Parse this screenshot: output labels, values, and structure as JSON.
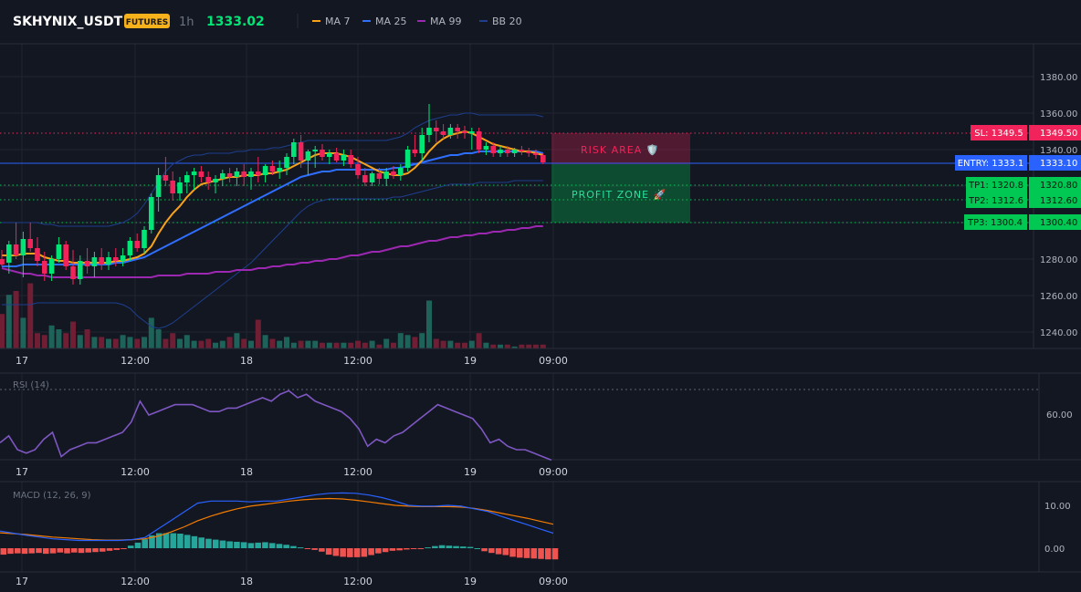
{
  "header": {
    "symbol": "SKHYNIX_USDT",
    "badge": "FUTURES",
    "interval": "1h",
    "price": "1333.02",
    "legend": [
      {
        "label": "MA 7",
        "color": "#f7a21b"
      },
      {
        "label": "MA 25",
        "color": "#2f6fff"
      },
      {
        "label": "MA 99",
        "color": "#9c27b0"
      },
      {
        "label": "BB 20",
        "color": "#1e3f8f"
      }
    ]
  },
  "colors": {
    "background": "#131722",
    "up": "#26a69a",
    "up_bright": "#00e676",
    "down": "#f0245a",
    "grid": "#1f2430",
    "sl": "#f0245a",
    "entry": "#2962ff",
    "tp": "#00c853"
  },
  "price_axis": {
    "labels": [
      "1380.00",
      "1360.00",
      "1340.00",
      "1280.00",
      "1260.00",
      "1240.00"
    ],
    "values": [
      1380,
      1360,
      1340,
      1280,
      1260,
      1240
    ]
  },
  "time_axis": [
    "17",
    "12:00",
    "18",
    "12:00",
    "19",
    "09:00"
  ],
  "levels": {
    "sl": {
      "label": "SL: 1349.5",
      "value": "1349.50"
    },
    "entry": {
      "label": "ENTRY: 1333.1",
      "value": "1333.10"
    },
    "tp1": {
      "label": "TP1: 1320.8",
      "value": "1320.80"
    },
    "tp2": {
      "label": "TP2: 1312.6",
      "value": "1312.60"
    },
    "tp3": {
      "label": "TP3: 1300.4",
      "value": "1300.40"
    }
  },
  "zones": {
    "risk": "RISK AREA 🛡️",
    "profit": "PROFIT ZONE 🚀"
  },
  "rsi": {
    "title": "RSI (14)",
    "axis_label": "60.00"
  },
  "macd": {
    "title": "MACD (12, 26, 9)",
    "axis_labels": [
      "10.00",
      "0.00"
    ]
  },
  "chart_data": {
    "type": "candlestick",
    "price_range": [
      1230,
      1390
    ],
    "candles": [
      {
        "o": 1280,
        "h": 1285,
        "l": 1276,
        "c": 1277
      },
      {
        "o": 1278,
        "h": 1290,
        "l": 1272,
        "c": 1288
      },
      {
        "o": 1288,
        "h": 1300,
        "l": 1280,
        "c": 1282
      },
      {
        "o": 1282,
        "h": 1295,
        "l": 1270,
        "c": 1291
      },
      {
        "o": 1291,
        "h": 1300,
        "l": 1284,
        "c": 1286
      },
      {
        "o": 1286,
        "h": 1292,
        "l": 1276,
        "c": 1279
      },
      {
        "o": 1279,
        "h": 1284,
        "l": 1268,
        "c": 1272
      },
      {
        "o": 1272,
        "h": 1282,
        "l": 1268,
        "c": 1280
      },
      {
        "o": 1280,
        "h": 1292,
        "l": 1278,
        "c": 1288
      },
      {
        "o": 1288,
        "h": 1290,
        "l": 1274,
        "c": 1276
      },
      {
        "o": 1276,
        "h": 1285,
        "l": 1266,
        "c": 1269
      },
      {
        "o": 1269,
        "h": 1282,
        "l": 1266,
        "c": 1279
      },
      {
        "o": 1279,
        "h": 1286,
        "l": 1272,
        "c": 1276
      },
      {
        "o": 1276,
        "h": 1284,
        "l": 1270,
        "c": 1281
      },
      {
        "o": 1281,
        "h": 1286,
        "l": 1274,
        "c": 1277
      },
      {
        "o": 1277,
        "h": 1284,
        "l": 1274,
        "c": 1281
      },
      {
        "o": 1281,
        "h": 1286,
        "l": 1276,
        "c": 1279
      },
      {
        "o": 1279,
        "h": 1286,
        "l": 1276,
        "c": 1282
      },
      {
        "o": 1282,
        "h": 1292,
        "l": 1279,
        "c": 1290
      },
      {
        "o": 1290,
        "h": 1294,
        "l": 1284,
        "c": 1286
      },
      {
        "o": 1286,
        "h": 1298,
        "l": 1283,
        "c": 1296
      },
      {
        "o": 1296,
        "h": 1316,
        "l": 1294,
        "c": 1314
      },
      {
        "o": 1314,
        "h": 1330,
        "l": 1306,
        "c": 1326
      },
      {
        "o": 1326,
        "h": 1336,
        "l": 1320,
        "c": 1323
      },
      {
        "o": 1323,
        "h": 1328,
        "l": 1312,
        "c": 1316
      },
      {
        "o": 1316,
        "h": 1325,
        "l": 1312,
        "c": 1322
      },
      {
        "o": 1322,
        "h": 1328,
        "l": 1316,
        "c": 1326
      },
      {
        "o": 1326,
        "h": 1330,
        "l": 1318,
        "c": 1328
      },
      {
        "o": 1328,
        "h": 1331,
        "l": 1322,
        "c": 1325
      },
      {
        "o": 1325,
        "h": 1328,
        "l": 1318,
        "c": 1322
      },
      {
        "o": 1322,
        "h": 1326,
        "l": 1316,
        "c": 1324
      },
      {
        "o": 1324,
        "h": 1329,
        "l": 1320,
        "c": 1327
      },
      {
        "o": 1327,
        "h": 1330,
        "l": 1322,
        "c": 1325
      },
      {
        "o": 1325,
        "h": 1330,
        "l": 1320,
        "c": 1328
      },
      {
        "o": 1328,
        "h": 1332,
        "l": 1320,
        "c": 1325
      },
      {
        "o": 1325,
        "h": 1330,
        "l": 1318,
        "c": 1328
      },
      {
        "o": 1328,
        "h": 1336,
        "l": 1322,
        "c": 1326
      },
      {
        "o": 1326,
        "h": 1332,
        "l": 1322,
        "c": 1331
      },
      {
        "o": 1331,
        "h": 1334,
        "l": 1326,
        "c": 1328
      },
      {
        "o": 1328,
        "h": 1334,
        "l": 1324,
        "c": 1330
      },
      {
        "o": 1330,
        "h": 1338,
        "l": 1326,
        "c": 1336
      },
      {
        "o": 1336,
        "h": 1346,
        "l": 1332,
        "c": 1344
      },
      {
        "o": 1344,
        "h": 1348,
        "l": 1330,
        "c": 1334
      },
      {
        "o": 1334,
        "h": 1340,
        "l": 1326,
        "c": 1339
      },
      {
        "o": 1339,
        "h": 1342,
        "l": 1330,
        "c": 1340
      },
      {
        "o": 1340,
        "h": 1343,
        "l": 1334,
        "c": 1336
      },
      {
        "o": 1336,
        "h": 1340,
        "l": 1332,
        "c": 1338
      },
      {
        "o": 1338,
        "h": 1341,
        "l": 1333,
        "c": 1334
      },
      {
        "o": 1334,
        "h": 1340,
        "l": 1331,
        "c": 1337
      },
      {
        "o": 1337,
        "h": 1340,
        "l": 1330,
        "c": 1332
      },
      {
        "o": 1332,
        "h": 1336,
        "l": 1324,
        "c": 1326
      },
      {
        "o": 1326,
        "h": 1330,
        "l": 1320,
        "c": 1322
      },
      {
        "o": 1322,
        "h": 1328,
        "l": 1320,
        "c": 1327
      },
      {
        "o": 1327,
        "h": 1330,
        "l": 1321,
        "c": 1324
      },
      {
        "o": 1324,
        "h": 1330,
        "l": 1320,
        "c": 1328
      },
      {
        "o": 1328,
        "h": 1331,
        "l": 1324,
        "c": 1326
      },
      {
        "o": 1326,
        "h": 1332,
        "l": 1323,
        "c": 1330
      },
      {
        "o": 1330,
        "h": 1342,
        "l": 1328,
        "c": 1340
      },
      {
        "o": 1340,
        "h": 1348,
        "l": 1336,
        "c": 1338
      },
      {
        "o": 1338,
        "h": 1352,
        "l": 1334,
        "c": 1348
      },
      {
        "o": 1348,
        "h": 1365,
        "l": 1344,
        "c": 1352
      },
      {
        "o": 1352,
        "h": 1356,
        "l": 1344,
        "c": 1350
      },
      {
        "o": 1350,
        "h": 1354,
        "l": 1346,
        "c": 1348
      },
      {
        "o": 1348,
        "h": 1354,
        "l": 1346,
        "c": 1352
      },
      {
        "o": 1352,
        "h": 1354,
        "l": 1346,
        "c": 1350
      },
      {
        "o": 1350,
        "h": 1353,
        "l": 1346,
        "c": 1349
      },
      {
        "o": 1349,
        "h": 1352,
        "l": 1340,
        "c": 1350
      },
      {
        "o": 1350,
        "h": 1352,
        "l": 1338,
        "c": 1340
      },
      {
        "o": 1340,
        "h": 1344,
        "l": 1337,
        "c": 1342
      },
      {
        "o": 1342,
        "h": 1344,
        "l": 1336,
        "c": 1338
      },
      {
        "o": 1338,
        "h": 1342,
        "l": 1336,
        "c": 1340
      },
      {
        "o": 1340,
        "h": 1342,
        "l": 1336,
        "c": 1338
      },
      {
        "o": 1338,
        "h": 1341,
        "l": 1336,
        "c": 1340
      },
      {
        "o": 1340,
        "h": 1342,
        "l": 1337,
        "c": 1339
      },
      {
        "o": 1339,
        "h": 1341,
        "l": 1336,
        "c": 1338
      },
      {
        "o": 1338,
        "h": 1340,
        "l": 1335,
        "c": 1337
      },
      {
        "o": 1337,
        "h": 1338,
        "l": 1332,
        "c": 1333
      }
    ],
    "ma7": [
      1282,
      1282,
      1282,
      1283,
      1283,
      1283,
      1281,
      1280,
      1279,
      1279,
      1278,
      1278,
      1278,
      1278,
      1278,
      1278,
      1279,
      1279,
      1280,
      1281,
      1283,
      1287,
      1294,
      1300,
      1305,
      1309,
      1314,
      1318,
      1321,
      1322,
      1323,
      1324,
      1325,
      1325,
      1326,
      1326,
      1326,
      1327,
      1327,
      1328,
      1329,
      1331,
      1333,
      1335,
      1337,
      1338,
      1338,
      1338,
      1337,
      1336,
      1334,
      1332,
      1330,
      1328,
      1327,
      1326,
      1326,
      1327,
      1330,
      1334,
      1339,
      1343,
      1346,
      1348,
      1349,
      1350,
      1349,
      1347,
      1345,
      1343,
      1342,
      1341,
      1340,
      1339,
      1339,
      1338,
      1337
    ],
    "ma25": [
      1276,
      1276,
      1276,
      1277,
      1277,
      1277,
      1277,
      1277,
      1277,
      1277,
      1277,
      1277,
      1277,
      1277,
      1277,
      1277,
      1278,
      1278,
      1279,
      1280,
      1281,
      1283,
      1285,
      1287,
      1289,
      1291,
      1293,
      1295,
      1297,
      1299,
      1301,
      1303,
      1305,
      1307,
      1309,
      1311,
      1313,
      1315,
      1317,
      1319,
      1321,
      1323,
      1325,
      1326,
      1327,
      1328,
      1328,
      1329,
      1329,
      1329,
      1329,
      1329,
      1329,
      1329,
      1329,
      1330,
      1330,
      1331,
      1332,
      1333,
      1334,
      1335,
      1336,
      1337,
      1337,
      1338,
      1338,
      1339,
      1339,
      1339,
      1339,
      1339,
      1339,
      1339,
      1339,
      1339,
      1338
    ],
    "ma99": [
      1275,
      1274,
      1273,
      1272,
      1272,
      1271,
      1271,
      1270,
      1270,
      1270,
      1270,
      1270,
      1270,
      1270,
      1270,
      1270,
      1270,
      1270,
      1270,
      1270,
      1270,
      1270,
      1271,
      1271,
      1271,
      1271,
      1272,
      1272,
      1272,
      1272,
      1273,
      1273,
      1273,
      1274,
      1274,
      1274,
      1275,
      1275,
      1276,
      1276,
      1277,
      1277,
      1278,
      1278,
      1279,
      1279,
      1280,
      1280,
      1281,
      1282,
      1282,
      1283,
      1284,
      1284,
      1285,
      1286,
      1287,
      1287,
      1288,
      1289,
      1290,
      1290,
      1291,
      1292,
      1292,
      1293,
      1293,
      1294,
      1294,
      1295,
      1295,
      1296,
      1296,
      1297,
      1297,
      1298,
      1298
    ],
    "bb_upper": [
      1300,
      1300,
      1300,
      1300,
      1300,
      1300,
      1299,
      1299,
      1298,
      1298,
      1298,
      1298,
      1298,
      1298,
      1298,
      1298,
      1299,
      1300,
      1302,
      1305,
      1310,
      1316,
      1322,
      1328,
      1332,
      1334,
      1336,
      1337,
      1337,
      1338,
      1338,
      1338,
      1338,
      1339,
      1339,
      1340,
      1340,
      1340,
      1341,
      1341,
      1342,
      1343,
      1344,
      1345,
      1345,
      1345,
      1345,
      1345,
      1345,
      1345,
      1345,
      1345,
      1345,
      1345,
      1345,
      1346,
      1347,
      1349,
      1352,
      1354,
      1356,
      1357,
      1358,
      1359,
      1359,
      1360,
      1360,
      1359,
      1359,
      1359,
      1359,
      1359,
      1359,
      1359,
      1359,
      1359,
      1358
    ],
    "bb_lower": [
      1255,
      1255,
      1255,
      1255,
      1255,
      1256,
      1256,
      1256,
      1256,
      1256,
      1256,
      1256,
      1256,
      1256,
      1256,
      1256,
      1256,
      1255,
      1253,
      1249,
      1246,
      1243,
      1242,
      1243,
      1245,
      1248,
      1251,
      1254,
      1257,
      1260,
      1263,
      1266,
      1269,
      1272,
      1275,
      1278,
      1282,
      1286,
      1290,
      1294,
      1298,
      1302,
      1306,
      1309,
      1311,
      1312,
      1313,
      1313,
      1313,
      1313,
      1313,
      1313,
      1313,
      1313,
      1313,
      1314,
      1314,
      1315,
      1316,
      1317,
      1318,
      1319,
      1320,
      1321,
      1321,
      1321,
      1321,
      1322,
      1322,
      1322,
      1322,
      1322,
      1323,
      1323,
      1323,
      1323,
      1323
    ],
    "volume": [
      18,
      28,
      30,
      16,
      34,
      8,
      7,
      12,
      10,
      8,
      14,
      7,
      10,
      6,
      6,
      5,
      5,
      7,
      6,
      5,
      6,
      16,
      10,
      5,
      8,
      5,
      7,
      4,
      4,
      5,
      3,
      4,
      6,
      8,
      5,
      4,
      15,
      7,
      5,
      4,
      6,
      3,
      4,
      4,
      4,
      3,
      3,
      3,
      3,
      3,
      4,
      3,
      4,
      2,
      5,
      3,
      8,
      7,
      6,
      8,
      25,
      5,
      4,
      4,
      3,
      3,
      4,
      8,
      3,
      2,
      2,
      2,
      1,
      2,
      2,
      2,
      2
    ],
    "rsi": [
      44,
      48,
      40,
      38,
      40,
      46,
      50,
      36,
      40,
      42,
      44,
      44,
      46,
      48,
      50,
      56,
      68,
      60,
      62,
      64,
      66,
      66,
      66,
      64,
      62,
      62,
      64,
      64,
      66,
      68,
      70,
      68,
      72,
      74,
      70,
      72,
      68,
      66,
      64,
      62,
      58,
      52,
      42,
      46,
      44,
      48,
      50,
      54,
      58,
      62,
      66,
      64,
      62,
      60,
      58,
      52,
      44,
      46,
      42,
      40,
      40,
      38,
      36,
      34
    ],
    "macd_line": [
      4,
      3.5,
      3,
      2.6,
      2.2,
      2,
      1.8,
      1.8,
      1.8,
      1.8,
      2,
      2.5,
      4.5,
      6.5,
      8.5,
      10.5,
      11,
      11,
      11,
      10.8,
      11,
      11,
      11.5,
      12,
      12.5,
      12.8,
      12.9,
      12.8,
      12.4,
      11.8,
      11,
      10,
      9.8,
      9.8,
      10,
      9.8,
      9.2,
      8.6,
      7.5,
      6.5,
      5.5,
      4.5,
      3.5
    ],
    "macd_signal": [
      3.6,
      3.4,
      3.2,
      2.9,
      2.6,
      2.4,
      2.2,
      2.0,
      1.9,
      1.9,
      2,
      2.2,
      2.8,
      3.8,
      5,
      6.4,
      7.5,
      8.4,
      9.2,
      9.8,
      10.2,
      10.6,
      11,
      11.3,
      11.5,
      11.6,
      11.5,
      11.2,
      10.8,
      10.4,
      10,
      9.8,
      9.7,
      9.7,
      9.7,
      9.6,
      9.3,
      8.8,
      8.2,
      7.6,
      7,
      6.3,
      5.6
    ],
    "macd_hist": [
      -1.5,
      -1.3,
      -1.2,
      -1.3,
      -1.2,
      -1.1,
      -1.3,
      -1.2,
      -1.0,
      -1.2,
      -1.0,
      -1.1,
      -1.0,
      -0.9,
      -0.8,
      -0.6,
      -0.4,
      -0.2,
      0.6,
      1.3,
      2.1,
      3.0,
      3.5,
      3.5,
      3.5,
      3.4,
      3.1,
      2.8,
      2.5,
      2.2,
      2.0,
      1.8,
      1.6,
      1.5,
      1.4,
      1.2,
      1.3,
      1.4,
      1.2,
      1.0,
      0.8,
      0.5,
      0.2,
      -0.1,
      -0.4,
      -0.8,
      -1.5,
      -1.8,
      -2.0,
      -2.1,
      -2.1,
      -2.0,
      -1.6,
      -1.2,
      -0.9,
      -0.6,
      -0.5,
      -0.3,
      -0.2,
      -0.1,
      0.2,
      0.5,
      0.7,
      0.6,
      0.5,
      0.4,
      0.3,
      0.0,
      -0.7,
      -1.1,
      -1.4,
      -1.6,
      -2.0,
      -2.2,
      -2.3,
      -2.4,
      -2.5,
      -2.6,
      -2.6
    ]
  }
}
